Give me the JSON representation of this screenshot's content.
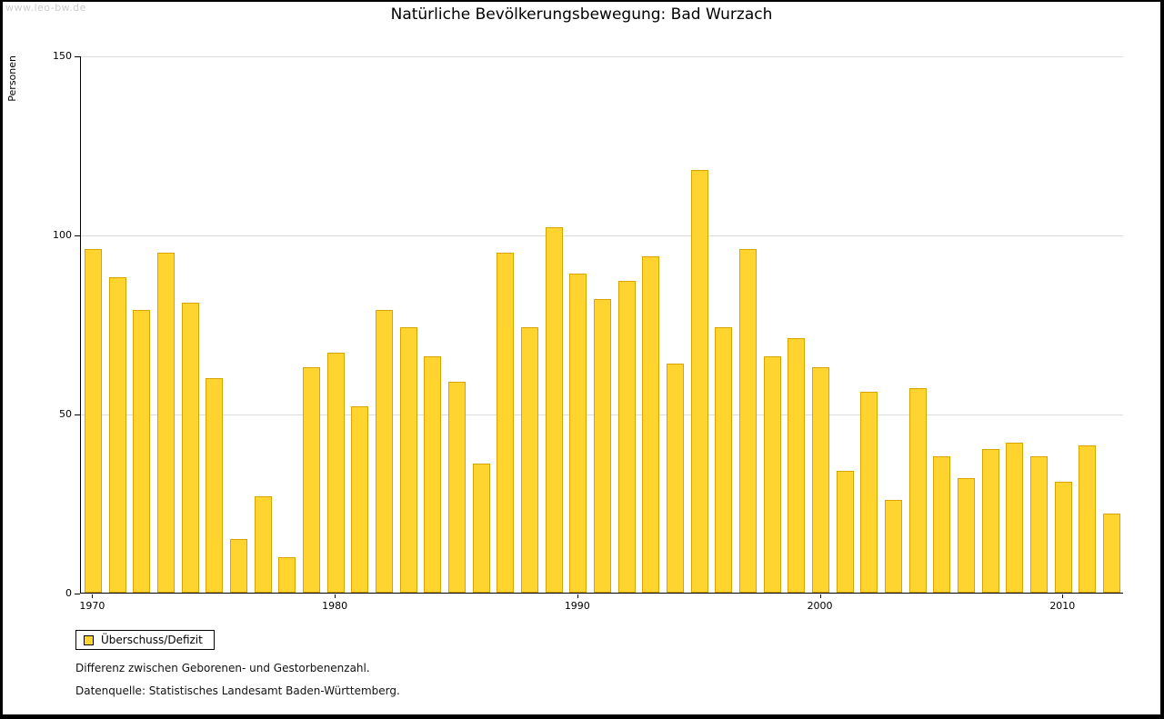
{
  "watermark": "www.leo-bw.de",
  "title": "Natürliche Bevölkerungsbewegung: Bad Wurzach",
  "legend": {
    "label": "Überschuss/Defizit"
  },
  "footnotes": [
    "Differenz zwischen Geborenen- und Gestorbenenzahl.",
    "Datenquelle: Statistisches Landesamt Baden-Württemberg."
  ],
  "chart_data": {
    "type": "bar",
    "title": "Natürliche Bevölkerungsbewegung: Bad Wurzach",
    "xlabel": "",
    "ylabel": "Personen",
    "ylim": [
      0,
      150
    ],
    "yticks": [
      0,
      50,
      100,
      150
    ],
    "xticks": [
      "1970",
      "1980",
      "1990",
      "2000",
      "2010"
    ],
    "grid": true,
    "legend_position": "bottom-left",
    "bar_color": "#ffd42e",
    "bar_border_color": "#d9a400",
    "series_name": "Überschuss/Defizit",
    "categories": [
      "1970",
      "1971",
      "1972",
      "1973",
      "1974",
      "1975",
      "1976",
      "1977",
      "1978",
      "1979",
      "1980",
      "1981",
      "1982",
      "1983",
      "1984",
      "1985",
      "1986",
      "1987",
      "1988",
      "1989",
      "1990",
      "1991",
      "1992",
      "1993",
      "1994",
      "1995",
      "1996",
      "1997",
      "1998",
      "1999",
      "2000",
      "2001",
      "2002",
      "2003",
      "2004",
      "2005",
      "2006",
      "2007",
      "2008",
      "2009",
      "2010",
      "2011",
      "2012"
    ],
    "values": [
      96,
      88,
      79,
      95,
      81,
      60,
      15,
      27,
      10,
      63,
      67,
      52,
      79,
      74,
      66,
      59,
      36,
      95,
      74,
      102,
      89,
      82,
      87,
      94,
      64,
      118,
      74,
      96,
      66,
      71,
      63,
      34,
      56,
      26,
      57,
      38,
      32,
      40,
      42,
      38,
      31,
      41,
      22
    ]
  }
}
